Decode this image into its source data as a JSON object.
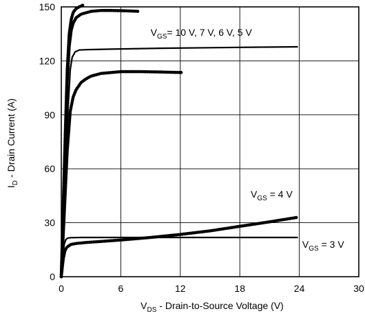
{
  "chart_data": {
    "type": "line",
    "title": "",
    "xlabel": {
      "main": "V",
      "sub": "DS",
      "rest": " - Drain-to-Source Voltage (V)"
    },
    "ylabel": {
      "main": "I",
      "sub": "D",
      "rest": " - Drain Current (A)"
    },
    "xlim": [
      0,
      30
    ],
    "ylim": [
      0,
      150
    ],
    "x_ticks": [
      0,
      6,
      12,
      18,
      24,
      30
    ],
    "y_ticks": [
      0,
      30,
      60,
      90,
      120,
      150
    ],
    "x_tick_labels": [
      "0",
      "6",
      "12",
      "18",
      "24",
      "30"
    ],
    "y_tick_labels": [
      "0",
      "30",
      "60",
      "90",
      "120",
      "150"
    ],
    "grid": true,
    "annotations": [
      {
        "prefix": "V",
        "sub": "GS",
        "text": "= 10 V, 7 V, 6 V, 5 V",
        "at": [
          9.0,
          134
        ]
      },
      {
        "prefix": "V",
        "sub": "GS",
        "text": " = 4 V",
        "at": [
          19.1,
          44
        ]
      },
      {
        "prefix": "V",
        "sub": "GS",
        "text": " = 3 V",
        "at": [
          24.3,
          16
        ]
      }
    ],
    "series": [
      {
        "style": "dotted",
        "x": [
          0,
          0.2,
          0.4,
          0.6,
          0.8,
          1.0,
          1.2,
          1.5,
          1.8,
          2.2
        ],
        "y": [
          0,
          40,
          80,
          115,
          135,
          143,
          147,
          149,
          150,
          151
        ]
      },
      {
        "style": "dotted",
        "x": [
          0,
          0.2,
          0.4,
          0.6,
          0.8,
          1.0,
          1.2,
          1.5,
          2.0,
          3.0,
          4.0,
          5.0,
          6.5,
          7.8
        ],
        "y": [
          0,
          38,
          76,
          108,
          128,
          137,
          141,
          144,
          146,
          147.5,
          148,
          148,
          147.8,
          147.5
        ]
      },
      {
        "style": "solid",
        "x": [
          0,
          0.3,
          0.6,
          0.9,
          1.1,
          1.4,
          1.8,
          2.5,
          5,
          10,
          15,
          20,
          23.8
        ],
        "y": [
          0,
          40,
          85,
          115,
          122,
          125,
          126,
          126.2,
          126.5,
          127,
          127.3,
          127.6,
          127.8
        ]
      },
      {
        "style": "dotted",
        "x": [
          0,
          0.3,
          0.6,
          0.9,
          1.2,
          1.5,
          2.0,
          2.5,
          3.0,
          4.0,
          5.0,
          6.0,
          8.0,
          10.0,
          12.2
        ],
        "y": [
          0,
          35,
          70,
          92,
          100,
          104,
          108,
          110,
          111.5,
          113,
          113.5,
          114,
          114,
          113.8,
          113.5
        ]
      },
      {
        "style": "dotted",
        "x": [
          0,
          0.1,
          0.2,
          0.35,
          0.5,
          0.7,
          1.0,
          1.5,
          2.5,
          4,
          6,
          9,
          12,
          15,
          18,
          21,
          23.8
        ],
        "y": [
          0,
          5,
          10,
          14,
          16,
          17,
          18,
          18.5,
          19,
          19.6,
          20.4,
          21.8,
          23.5,
          25.5,
          28,
          30.5,
          33
        ]
      },
      {
        "style": "solid",
        "x": [
          0,
          0.1,
          0.2,
          0.3,
          0.45,
          0.6,
          0.8,
          1.0,
          2,
          6,
          12,
          18,
          23.8
        ],
        "y": [
          0,
          8,
          14,
          18,
          20.5,
          21.3,
          21.6,
          21.7,
          21.8,
          21.8,
          21.8,
          21.8,
          21.8
        ]
      }
    ]
  }
}
